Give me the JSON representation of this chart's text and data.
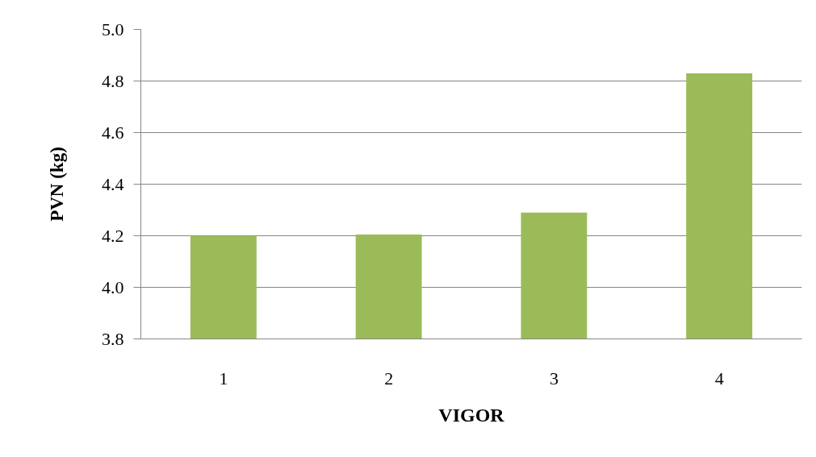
{
  "chart_data": {
    "type": "bar",
    "xlabel": "VIGOR",
    "ylabel": "PVN (kg)",
    "categories": [
      "1",
      "2",
      "3",
      "4"
    ],
    "values": [
      4.2,
      4.205,
      4.29,
      4.83
    ],
    "color": "#9bbb59",
    "ylim": [
      3.8,
      5.0
    ],
    "yticks": [
      3.8,
      {
        "value": 4.0,
        "label": "4.0"
      },
      4.2,
      4.4,
      4.6,
      4.8,
      {
        "value": 5.0,
        "label": "5.0"
      }
    ],
    "grid": "y"
  }
}
